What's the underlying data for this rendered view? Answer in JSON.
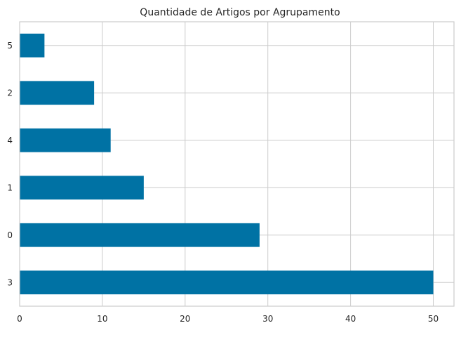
{
  "chart_data": {
    "type": "bar",
    "orientation": "horizontal",
    "title": "Quantidade de Artigos por Agrupamento",
    "categories": [
      "3",
      "0",
      "1",
      "4",
      "2",
      "5"
    ],
    "values": [
      50,
      29,
      15,
      11,
      9,
      3
    ],
    "xlabel": "",
    "ylabel": "",
    "xlim": [
      0,
      52.5
    ],
    "xticks": [
      0,
      10,
      20,
      30,
      40,
      50
    ],
    "grid": true,
    "bar_color": "#0072a4"
  }
}
